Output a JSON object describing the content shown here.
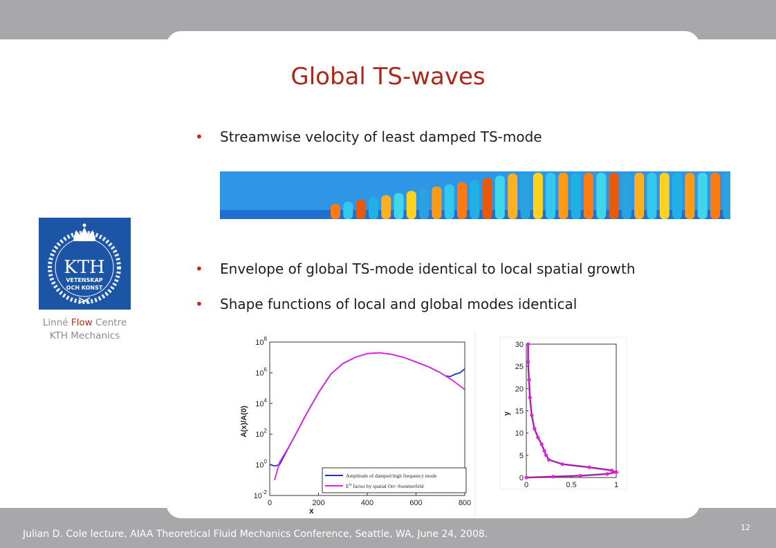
{
  "slide": {
    "title": "Global TS-waves",
    "bullets": [
      "Streamwise velocity of least damped TS-mode",
      "Envelope of global TS-mode identical to local spatial growth",
      "Shape functions of local and global modes identical"
    ],
    "bullet_symbol": "•",
    "logo": {
      "main": "KTH",
      "line1": "VETENSKAP",
      "line2": "OCH KONST"
    },
    "caption": {
      "w1": "Linné",
      "w2": "Flow",
      "w3": "Centre",
      "line2": "KTH Mechanics"
    },
    "footer": "Julian D. Cole lecture, AIAA Theoretical Fluid Mechanics Conference, Seattle, WA, June 24, 2008.",
    "page_number": "12",
    "colors": {
      "title": "#b22418",
      "accent": "#c8281a",
      "band": "#a8a8ab",
      "logo": "#1c55a5"
    }
  },
  "chart_data": [
    {
      "type": "line",
      "xlabel": "x",
      "ylabel": "A(x)/A(0)",
      "xlim": [
        0,
        800
      ],
      "ylim_log10": [
        -2,
        8
      ],
      "y_scale": "log",
      "xticks": [
        "0",
        "200",
        "400",
        "600",
        "800"
      ],
      "yticks": [
        {
          "base": "10",
          "exp": "-2",
          "pow": -2
        },
        {
          "base": "10",
          "exp": "0",
          "pow": 0
        },
        {
          "base": "10",
          "exp": "2",
          "pow": 2
        },
        {
          "base": "10",
          "exp": "4",
          "pow": 4
        },
        {
          "base": "10",
          "exp": "6",
          "pow": 6
        },
        {
          "base": "10",
          "exp": "8",
          "pow": 8
        }
      ],
      "legend_position": "bottom-right",
      "series": [
        {
          "name": "Amplitude of damped high frequency mode",
          "color": "#1f2fc0",
          "x": [
            0,
            20,
            40,
            70,
            100,
            150,
            200,
            250,
            300,
            350,
            400,
            450,
            500,
            550,
            600,
            650,
            700,
            720,
            740,
            760,
            780,
            800
          ],
          "y_log10": [
            0.02,
            -0.08,
            0.0,
            0.9,
            1.8,
            3.3,
            4.7,
            5.9,
            6.6,
            7.0,
            7.25,
            7.3,
            7.2,
            7.0,
            6.7,
            6.4,
            6.0,
            5.8,
            5.75,
            5.9,
            6.0,
            6.25
          ]
        },
        {
          "name": "E^N factor by spatial Orr−Sommerfeld",
          "name_parts": {
            "pre": "E",
            "sup": "N",
            "post": " factor by spatial Orr−Sommerfeld"
          },
          "color": "#e61ee6",
          "x": [
            20,
            40,
            70,
            100,
            150,
            200,
            250,
            300,
            350,
            400,
            450,
            500,
            550,
            600,
            650,
            700,
            750,
            800
          ],
          "y_log10": [
            -1.0,
            0.15,
            0.95,
            1.8,
            3.3,
            4.7,
            5.9,
            6.6,
            7.0,
            7.25,
            7.3,
            7.2,
            7.0,
            6.7,
            6.4,
            6.0,
            5.5,
            4.9
          ]
        }
      ]
    },
    {
      "type": "line",
      "ylabel": "y",
      "xlim": [
        0,
        1
      ],
      "ylim": [
        0,
        30
      ],
      "xticks": [
        "0",
        "0.5",
        "1"
      ],
      "yticks": [
        "0",
        "5",
        "10",
        "15",
        "20",
        "25",
        "30"
      ],
      "series": [
        {
          "name": "",
          "color": "#111111",
          "x": [
            0.0,
            0.3,
            0.6,
            0.9,
            1.0,
            0.95,
            0.7,
            0.4,
            0.25,
            0.22,
            0.2,
            0.17,
            0.13,
            0.09,
            0.06,
            0.04,
            0.03,
            0.02,
            0.02
          ],
          "y": [
            0.0,
            0.2,
            0.4,
            0.8,
            1.2,
            1.6,
            2.3,
            3.0,
            4.0,
            5.0,
            6.0,
            7.5,
            9.0,
            11.0,
            14.0,
            18.0,
            22.0,
            26.0,
            30.0
          ]
        },
        {
          "name": "",
          "color": "#e61ee6",
          "x": [
            0.0,
            0.3,
            0.6,
            0.9,
            1.0,
            0.95,
            0.7,
            0.4,
            0.25,
            0.22,
            0.2,
            0.17,
            0.13,
            0.09,
            0.06,
            0.04,
            0.03,
            0.02,
            0.02
          ],
          "y": [
            0.0,
            0.2,
            0.4,
            0.8,
            1.2,
            1.6,
            2.3,
            3.0,
            4.0,
            5.0,
            6.0,
            7.5,
            9.0,
            11.0,
            14.0,
            18.0,
            22.0,
            26.0,
            30.0
          ]
        }
      ]
    }
  ]
}
